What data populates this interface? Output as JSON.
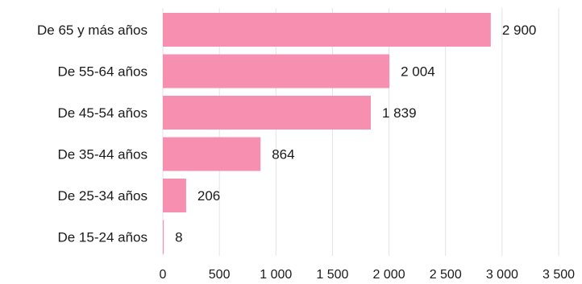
{
  "chart_data": {
    "type": "bar",
    "orientation": "horizontal",
    "categories": [
      "De 65 y más años",
      "De 55-64 años",
      "De 45-54 años",
      "De 35-44 años",
      "De 25-34 años",
      "De 15-24 años"
    ],
    "values": [
      2900,
      2004,
      1839,
      864,
      206,
      8
    ],
    "value_labels": [
      "2 900",
      "2 004",
      "1 839",
      "864",
      "206",
      "8"
    ],
    "xlim": [
      0,
      3500
    ],
    "x_ticks": [
      0,
      500,
      1000,
      1500,
      2000,
      2500,
      3000,
      3500
    ],
    "x_tick_labels": [
      "0",
      "500",
      "1 000",
      "1 500",
      "2 000",
      "2 500",
      "3 000",
      "3 500"
    ],
    "grid": "vertical",
    "colors": {
      "bar": "#f78fb0"
    }
  }
}
